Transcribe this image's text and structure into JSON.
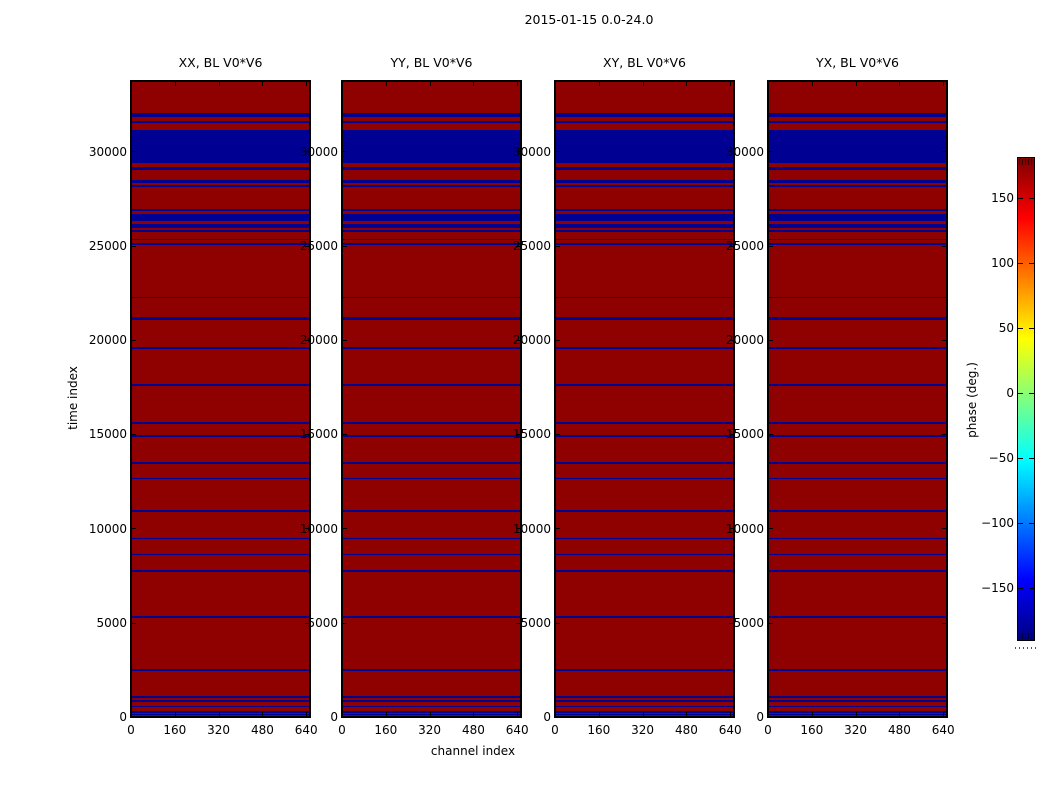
{
  "figure": {
    "title": "2015-01-15 0.0-24.0",
    "x_axis_label": "channel index",
    "y_axis_label": "time index"
  },
  "colorbar": {
    "label": "phase (deg.)",
    "tick_values": [
      150,
      100,
      50,
      0,
      -50,
      -100,
      -150
    ],
    "vmin_deg": -180,
    "vmax_deg": 180,
    "colormap": "jet",
    "gradient_stops": [
      [
        "#000080",
        0
      ],
      [
        "#0000ff",
        12.5
      ],
      [
        "#00ffff",
        37.5
      ],
      [
        "#ffff00",
        62.5
      ],
      [
        "#ff0000",
        87.5
      ],
      [
        "#800000",
        100
      ]
    ]
  },
  "chart_data": {
    "type": "heatmap",
    "panels": [
      {
        "polarization": "XX",
        "baseline": "V0*V6",
        "title": "XX, BL V0*V6"
      },
      {
        "polarization": "YY",
        "baseline": "V0*V6",
        "title": "YY, BL V0*V6"
      },
      {
        "polarization": "XY",
        "baseline": "V0*V6",
        "title": "XY, BL V0*V6"
      },
      {
        "polarization": "YX",
        "baseline": "V0*V6",
        "title": "YX, BL V0*V6"
      }
    ],
    "x_ticks": [
      0,
      160,
      320,
      480,
      640
    ],
    "x_range": [
      0,
      654
    ],
    "y_ticks": [
      0,
      5000,
      10000,
      15000,
      20000,
      25000,
      30000
    ],
    "y_range": [
      0,
      33740
    ],
    "background_phase_deg": 180,
    "background_color": "#8f0000",
    "flagged_phase_deg": -180,
    "flagged_color": "#000093",
    "flagged_time_ranges": [
      [
        0,
        40
      ],
      [
        80,
        150
      ],
      [
        230,
        320
      ],
      [
        530,
        600
      ],
      [
        800,
        880
      ],
      [
        1030,
        1110
      ],
      [
        2440,
        2530
      ],
      [
        5270,
        5360
      ],
      [
        7690,
        7780
      ],
      [
        8580,
        8670
      ],
      [
        9430,
        9520
      ],
      [
        10870,
        10960
      ],
      [
        12610,
        12700
      ],
      [
        13440,
        13530
      ],
      [
        14840,
        14950
      ],
      [
        15530,
        15650
      ],
      [
        17550,
        17670
      ],
      [
        19540,
        19650
      ],
      [
        21080,
        21220
      ],
      [
        22200,
        22300
      ],
      [
        25050,
        25130
      ],
      [
        25280,
        25380
      ],
      [
        25720,
        25840
      ],
      [
        25950,
        26160
      ],
      [
        26310,
        26670
      ],
      [
        26820,
        26930
      ],
      [
        28100,
        28230
      ],
      [
        28350,
        28500
      ],
      [
        29050,
        29180
      ],
      [
        29400,
        31120
      ],
      [
        31500,
        31600
      ],
      [
        31850,
        32030
      ]
    ]
  }
}
